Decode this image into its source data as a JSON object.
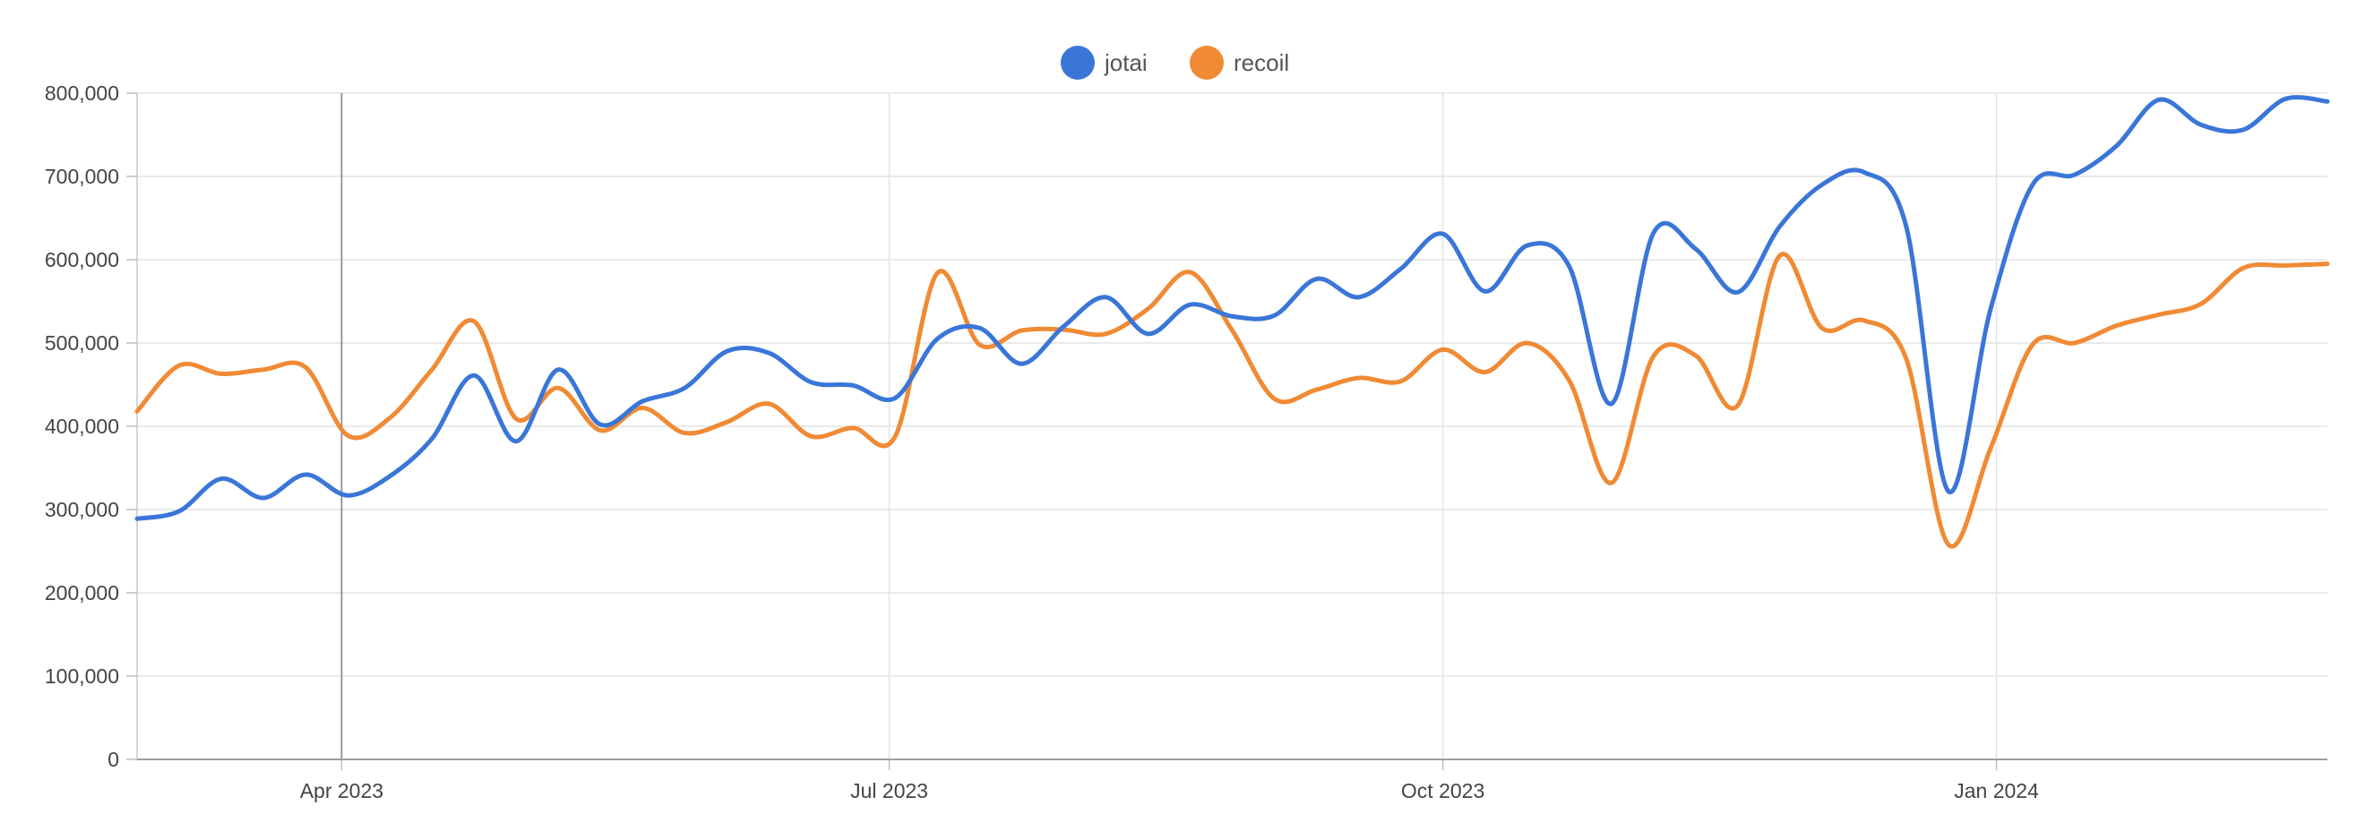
{
  "chart_data": {
    "type": "line",
    "title": "",
    "xlabel": "",
    "ylabel": "",
    "ylim": [
      0,
      800000
    ],
    "grid": true,
    "legend_position": "top-center",
    "y_ticks": [
      {
        "value": 0,
        "label": "0"
      },
      {
        "value": 100000,
        "label": "100,000"
      },
      {
        "value": 200000,
        "label": "200,000"
      },
      {
        "value": 300000,
        "label": "300,000"
      },
      {
        "value": 400000,
        "label": "400,000"
      },
      {
        "value": 500000,
        "label": "500,000"
      },
      {
        "value": 600000,
        "label": "600,000"
      },
      {
        "value": 700000,
        "label": "700,000"
      },
      {
        "value": 800000,
        "label": "800,000"
      }
    ],
    "x_ticks": [
      {
        "date": "2023-04-01",
        "label": "Apr 2023"
      },
      {
        "date": "2023-07-01",
        "label": "Jul 2023"
      },
      {
        "date": "2023-10-01",
        "label": "Oct 2023"
      },
      {
        "date": "2024-01-01",
        "label": "Jan 2024"
      }
    ],
    "xlim": [
      "2023-02-26",
      "2024-02-25"
    ],
    "highlight_date": "2023-04-01",
    "x": [
      "2023-02-26",
      "2023-03-05",
      "2023-03-12",
      "2023-03-19",
      "2023-03-26",
      "2023-04-02",
      "2023-04-09",
      "2023-04-16",
      "2023-04-23",
      "2023-04-30",
      "2023-05-07",
      "2023-05-14",
      "2023-05-21",
      "2023-05-28",
      "2023-06-04",
      "2023-06-11",
      "2023-06-18",
      "2023-06-25",
      "2023-07-02",
      "2023-07-09",
      "2023-07-16",
      "2023-07-23",
      "2023-07-30",
      "2023-08-06",
      "2023-08-13",
      "2023-08-20",
      "2023-08-27",
      "2023-09-03",
      "2023-09-10",
      "2023-09-17",
      "2023-09-24",
      "2023-10-01",
      "2023-10-08",
      "2023-10-15",
      "2023-10-22",
      "2023-10-29",
      "2023-11-05",
      "2023-11-12",
      "2023-11-19",
      "2023-11-26",
      "2023-12-03",
      "2023-12-10",
      "2023-12-17",
      "2023-12-24",
      "2023-12-31",
      "2024-01-07",
      "2024-01-14",
      "2024-01-21",
      "2024-01-28",
      "2024-02-04",
      "2024-02-11",
      "2024-02-18",
      "2024-02-25"
    ],
    "series": [
      {
        "name": "jotai",
        "color": "#3A76D8",
        "values": [
          289000,
          298000,
          337000,
          314000,
          342000,
          317000,
          340000,
          385000,
          461000,
          382000,
          468000,
          402000,
          430000,
          446000,
          490000,
          488000,
          453000,
          449000,
          434000,
          505000,
          518000,
          475000,
          520000,
          555000,
          511000,
          546000,
          532000,
          533000,
          577000,
          555000,
          589000,
          631000,
          562000,
          617000,
          592000,
          427000,
          632000,
          613000,
          561000,
          640000,
          690000,
          705000,
          640000,
          322000,
          540000,
          690000,
          702000,
          737000,
          792000,
          762000,
          756000,
          793000,
          790000
        ]
      },
      {
        "name": "recoil",
        "color": "#F08A34",
        "values": [
          418000,
          473000,
          463000,
          468000,
          471000,
          389000,
          410000,
          468000,
          526000,
          409000,
          446000,
          395000,
          422000,
          392000,
          405000,
          427000,
          388000,
          398000,
          388000,
          584000,
          498000,
          515000,
          516000,
          511000,
          541000,
          585000,
          515000,
          433000,
          444000,
          458000,
          454000,
          492000,
          465000,
          500000,
          455000,
          332000,
          484000,
          485000,
          425000,
          605000,
          518000,
          527000,
          481000,
          258000,
          373000,
          498000,
          500000,
          521000,
          534000,
          547000,
          590000,
          593000,
          595000
        ]
      }
    ]
  }
}
